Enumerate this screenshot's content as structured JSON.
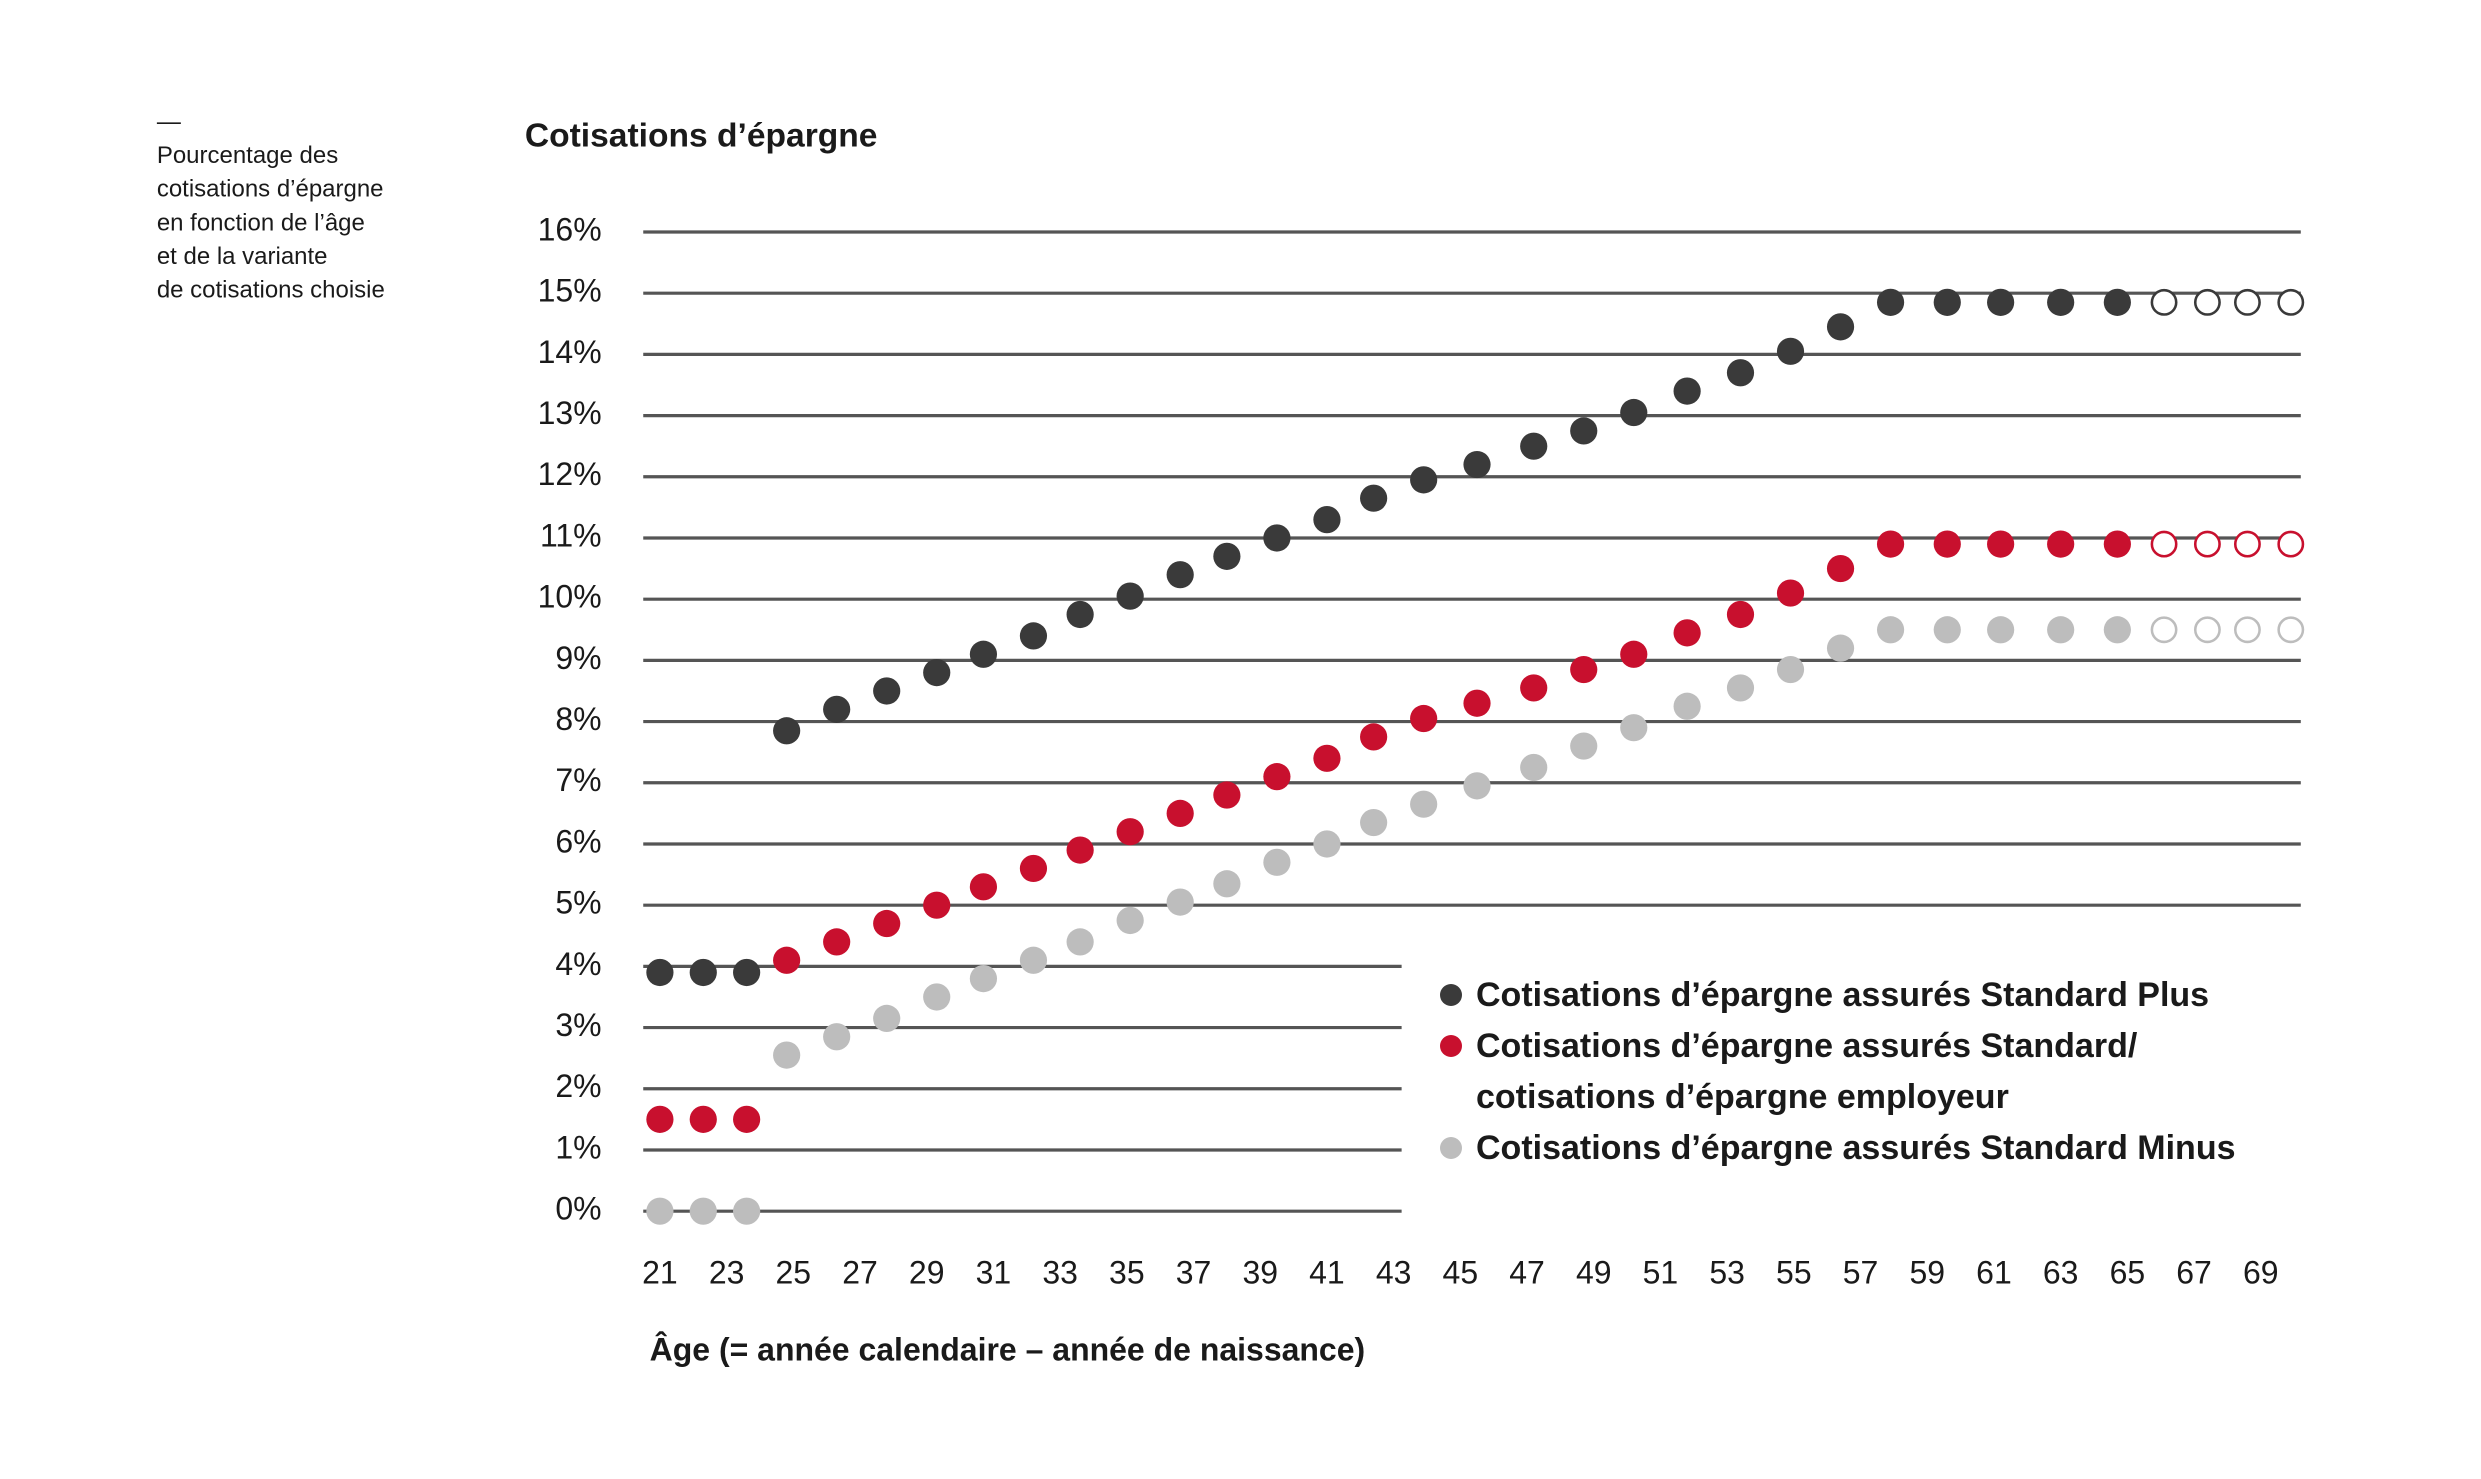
{
  "chart_data": {
    "type": "scatter",
    "title": "Cotisations d’épargne",
    "note_dash": "—",
    "note_lines": [
      "Pourcentage des",
      "cotisations d’épargne",
      "en fonction de l’âge",
      "et de la variante",
      "de cotisations choisie"
    ],
    "x_label": "Âge (= année calendaire – année de naissance)",
    "x": [
      21.0,
      22.3,
      23.6,
      24.8,
      26.3,
      27.8,
      29.3,
      30.7,
      32.2,
      33.6,
      35.1,
      36.6,
      38.0,
      39.5,
      41.0,
      42.4,
      43.9,
      45.5,
      47.2,
      48.7,
      50.2,
      51.8,
      53.4,
      54.9,
      56.4,
      57.9,
      59.6,
      61.2,
      63.0,
      64.7,
      66.1,
      67.4,
      68.6,
      69.9
    ],
    "series": [
      {
        "name": "Cotisations d’épargne assurés Standard Plus",
        "color": "#3a3a3a",
        "values": [
          3.9,
          3.9,
          3.9,
          7.85,
          8.2,
          8.5,
          8.8,
          9.1,
          9.4,
          9.75,
          10.05,
          10.4,
          10.7,
          11.0,
          11.3,
          11.65,
          11.95,
          12.2,
          12.5,
          12.75,
          13.05,
          13.4,
          13.7,
          14.05,
          14.45,
          14.85,
          14.85,
          14.85,
          14.85,
          14.85,
          14.85,
          14.85,
          14.85,
          14.85
        ]
      },
      {
        "name": "Cotisations d’épargne assurés Standard/ cotisations d’épargne employeur",
        "color": "#c8102e",
        "values": [
          1.5,
          1.5,
          1.5,
          4.1,
          4.4,
          4.7,
          5.0,
          5.3,
          5.6,
          5.9,
          6.2,
          6.5,
          6.8,
          7.1,
          7.4,
          7.75,
          8.05,
          8.3,
          8.55,
          8.85,
          9.1,
          9.45,
          9.75,
          10.1,
          10.5,
          10.9,
          10.9,
          10.9,
          10.9,
          10.9,
          10.9,
          10.9,
          10.9,
          10.9
        ]
      },
      {
        "name": "Cotisations d’épargne assurés Standard Minus",
        "color": "#bdbdbd",
        "values": [
          0,
          0,
          0,
          2.55,
          2.85,
          3.15,
          3.5,
          3.8,
          4.1,
          4.4,
          4.75,
          5.05,
          5.35,
          5.7,
          6.0,
          6.35,
          6.65,
          6.95,
          7.25,
          7.6,
          7.9,
          8.25,
          8.55,
          8.85,
          9.2,
          9.5,
          9.5,
          9.5,
          9.5,
          9.5,
          9.5,
          9.5,
          9.5,
          9.5
        ]
      }
    ],
    "hollow_from_x": 66,
    "xlim": [
      20.5,
      70.2
    ],
    "xticks": [
      21,
      23,
      25,
      27,
      29,
      31,
      33,
      35,
      37,
      39,
      41,
      43,
      45,
      47,
      49,
      51,
      53,
      55,
      57,
      59,
      61,
      63,
      65,
      67,
      69
    ],
    "ylim": [
      0,
      16
    ],
    "yticks": [
      {
        "value": 0,
        "label": "0%"
      },
      {
        "value": 1,
        "label": "1%"
      },
      {
        "value": 2,
        "label": "2%"
      },
      {
        "value": 3,
        "label": "3%"
      },
      {
        "value": 4,
        "label": "4%"
      },
      {
        "value": 5,
        "label": "5%"
      },
      {
        "value": 6,
        "label": "6%"
      },
      {
        "value": 7,
        "label": "7%"
      },
      {
        "value": 8,
        "label": "8%"
      },
      {
        "value": 9,
        "label": "9%"
      },
      {
        "value": 10,
        "label": "10%"
      },
      {
        "value": 11,
        "label": "11%"
      },
      {
        "value": 12,
        "label": "12%"
      },
      {
        "value": 13,
        "label": "13%"
      },
      {
        "value": 14,
        "label": "14%"
      },
      {
        "value": 15,
        "label": "15%"
      },
      {
        "value": 16,
        "label": "16%"
      }
    ],
    "grid": true,
    "legend": "bottom-right"
  }
}
